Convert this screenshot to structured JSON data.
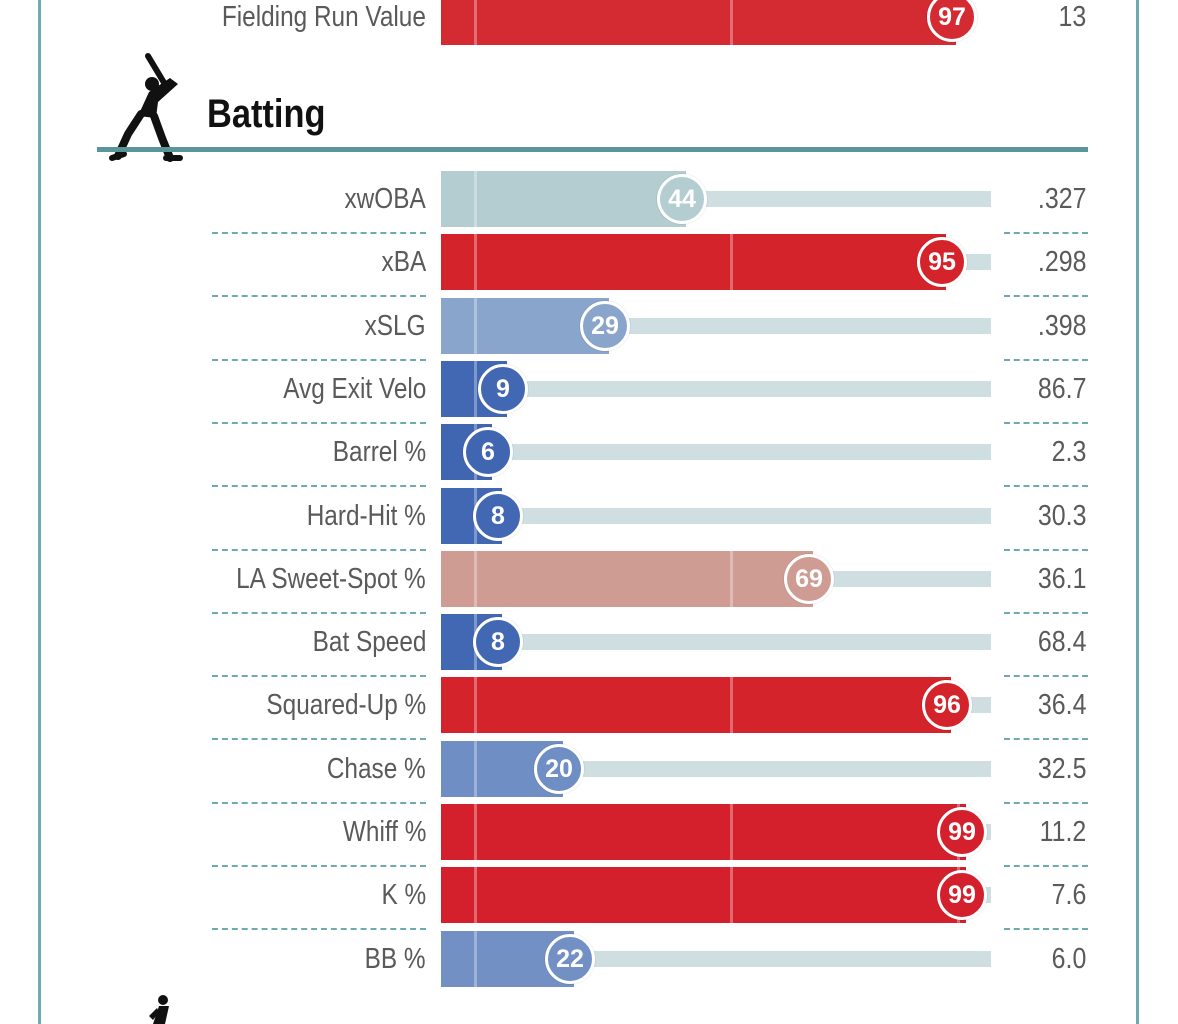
{
  "colors": {
    "frame": "#6faaae",
    "track": "#cfdfe1",
    "label_text": "#5a5a5a",
    "percentile_high": "#d4202c",
    "percentile_low": "#3f65b0"
  },
  "top_row": {
    "label": "Fielding Run Value",
    "percentile": 97,
    "value": "13",
    "color": "#d42a32"
  },
  "section": {
    "title": "Batting",
    "icon": "baseball-batter-icon"
  },
  "next_section_icon": "pitcher-icon",
  "chart_data": {
    "type": "bar",
    "title": "Batting",
    "xlim": [
      0,
      100
    ],
    "categories": [
      "xwOBA",
      "xBA",
      "xSLG",
      "Avg Exit Velo",
      "Barrel %",
      "Hard-Hit %",
      "LA Sweet-Spot %",
      "Bat Speed",
      "Squared-Up %",
      "Chase %",
      "Whiff %",
      "K %",
      "BB %"
    ],
    "values": [
      44,
      95,
      29,
      9,
      6,
      8,
      69,
      8,
      96,
      20,
      99,
      99,
      22
    ],
    "stat_values": [
      ".327",
      ".298",
      ".398",
      "86.7",
      "2.3",
      "30.3",
      "36.1",
      "68.4",
      "36.4",
      "32.5",
      "11.2",
      "7.6",
      "6.0"
    ],
    "colors": [
      "#b3cdd1",
      "#d4232b",
      "#8aa5cb",
      "#4368b3",
      "#4066b2",
      "#4368b3",
      "#cf9c93",
      "#4368b3",
      "#d4232b",
      "#6f8ec3",
      "#d4202c",
      "#d4202c",
      "#7290c4"
    ]
  }
}
